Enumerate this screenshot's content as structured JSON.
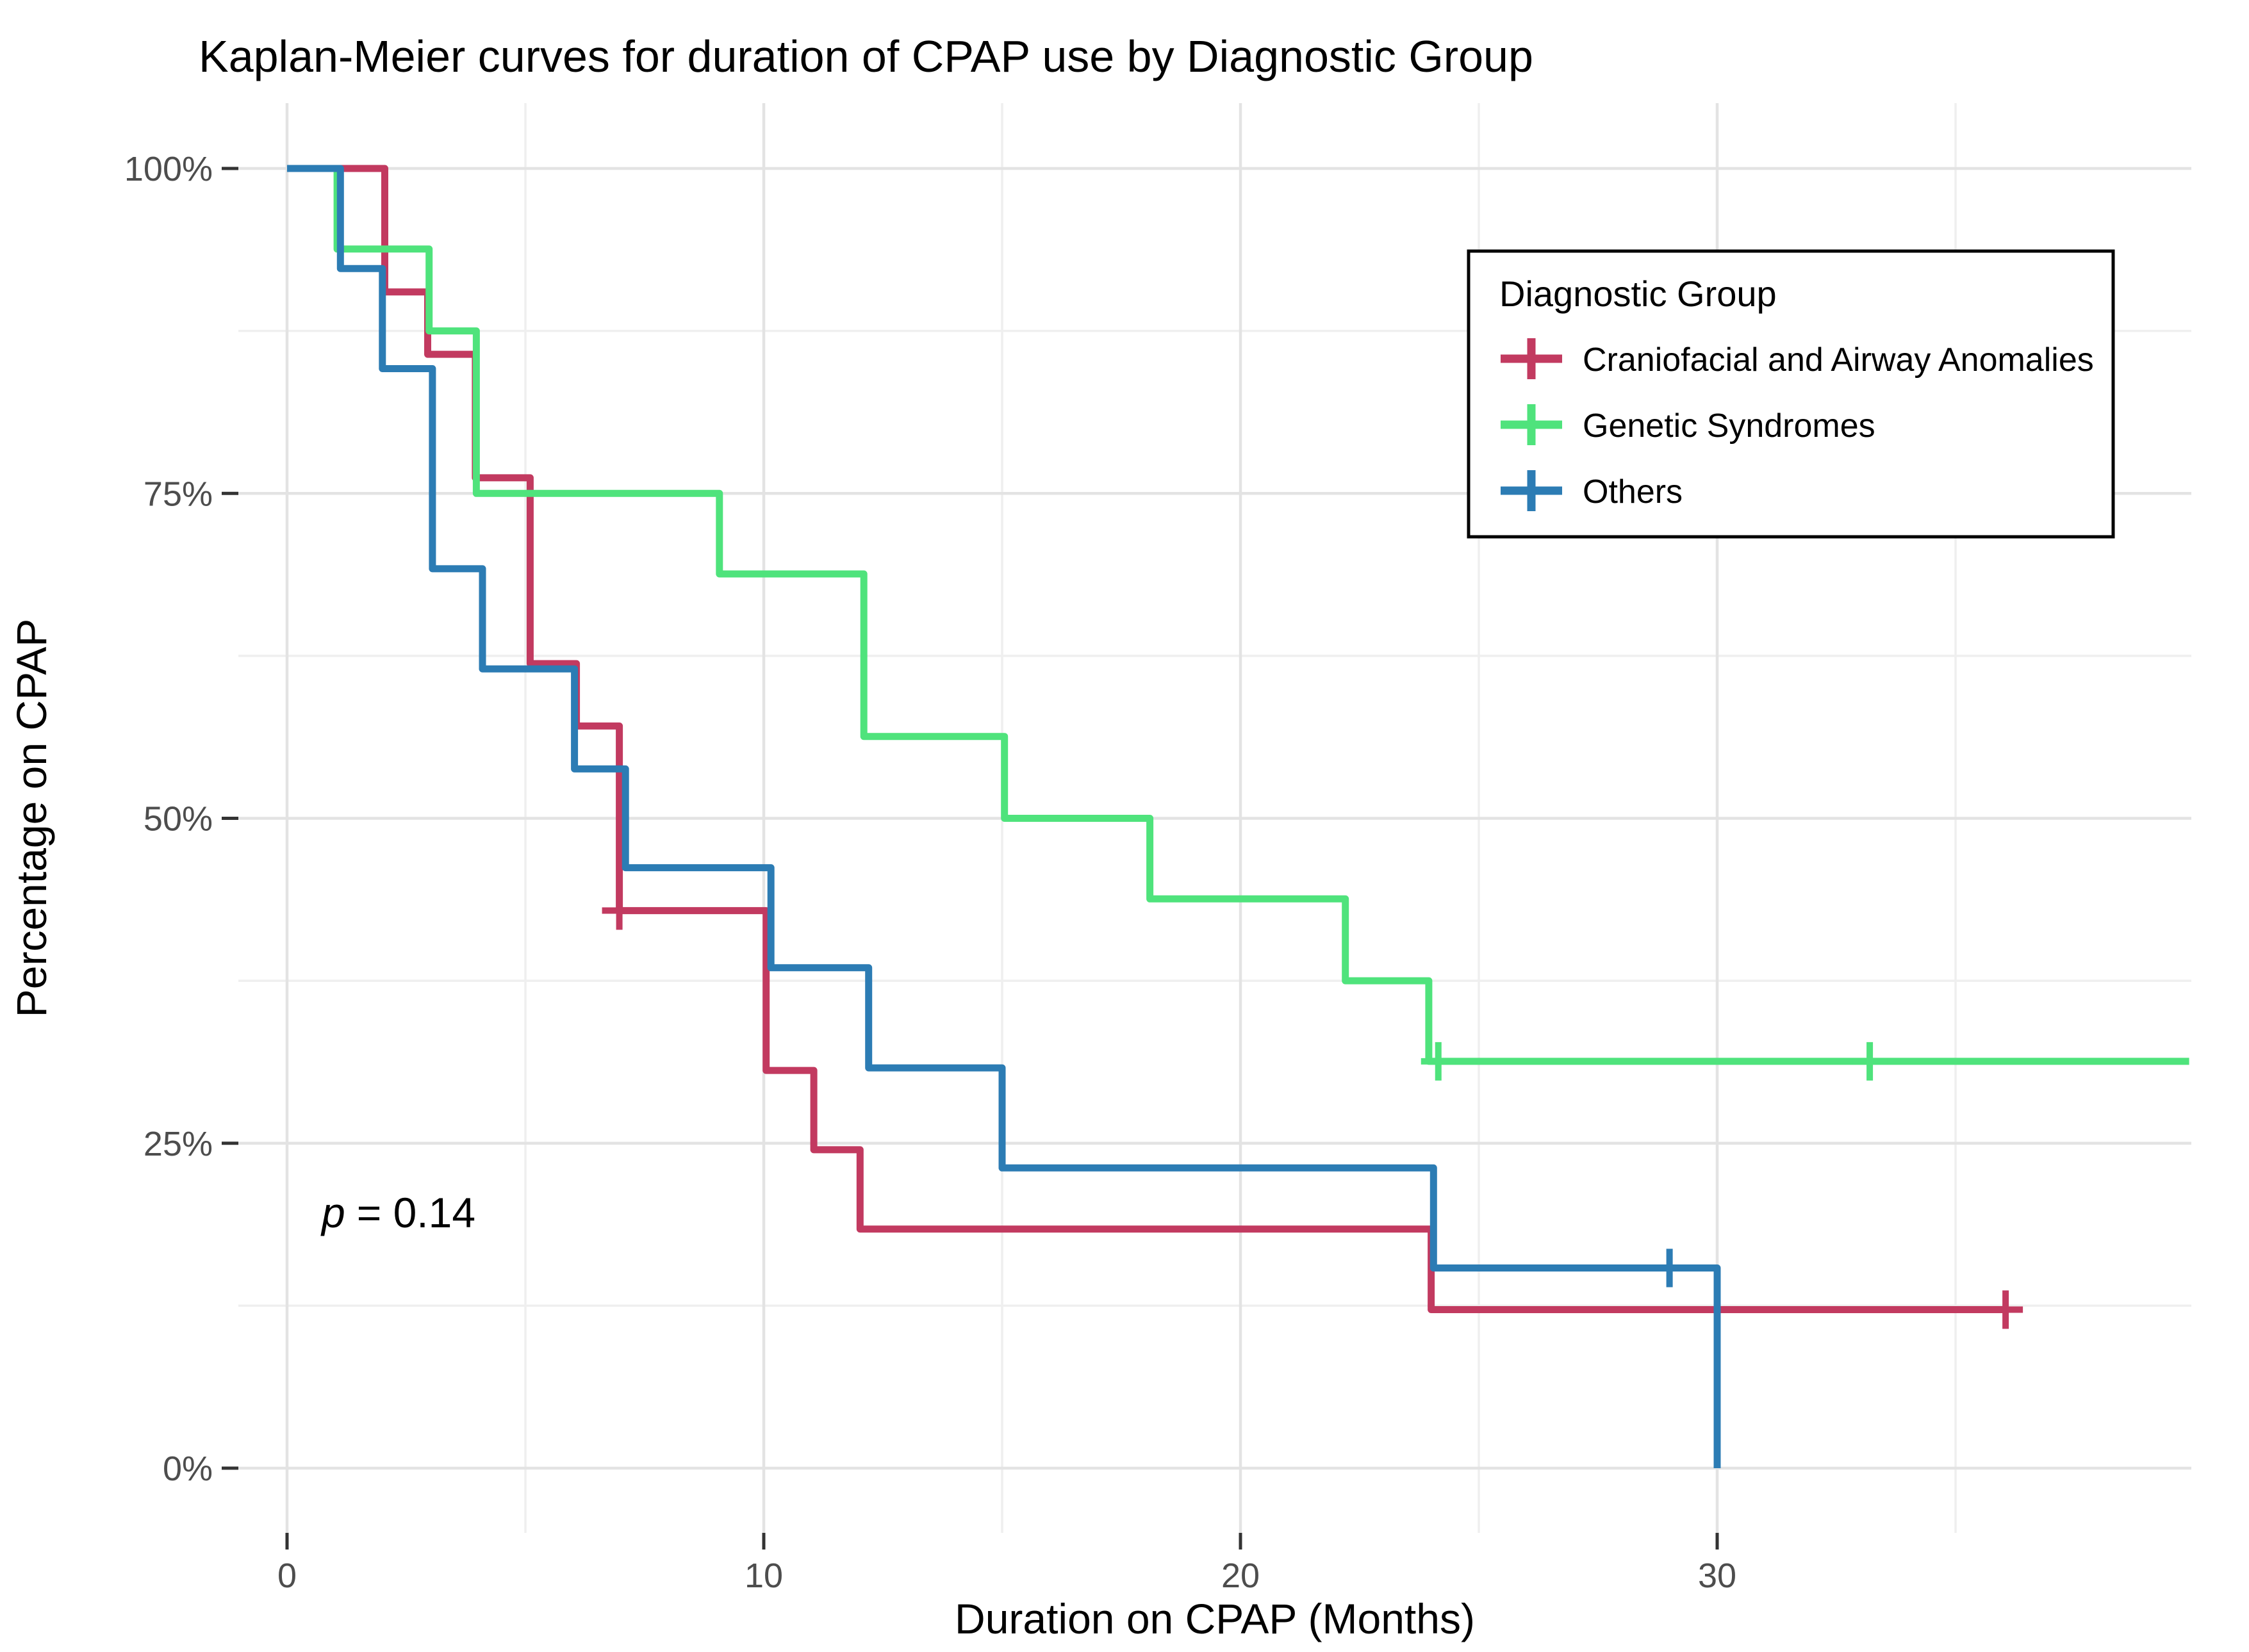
{
  "title": "Kaplan-Meier curves for duration of CPAP use by Diagnostic Group",
  "p_annotation": {
    "symbol": "p",
    "text": "= 0.14"
  },
  "x_axis": {
    "label": "Duration on CPAP (Months)",
    "tick_values": [
      0,
      10,
      20,
      30
    ],
    "tick_labels": [
      "0",
      "10",
      "20",
      "30"
    ],
    "minor_ticks": [
      5,
      15,
      25,
      35
    ]
  },
  "y_axis": {
    "label": "Percentage on CPAP",
    "tick_values": [
      100,
      75,
      50,
      25,
      0
    ],
    "tick_labels": [
      "100%",
      "75%",
      "50%",
      "25%",
      "0%"
    ],
    "minor_ticks": [
      87.5,
      62.5,
      37.5,
      12.5
    ]
  },
  "legend": {
    "title": "Diagnostic Group",
    "entries": [
      {
        "label": "Craniofacial and Airway Anomalies",
        "color": "#c23a60"
      },
      {
        "label": "Genetic Syndromes",
        "color": "#4fe37c"
      },
      {
        "label": "Others",
        "color": "#2c7cb4"
      }
    ]
  },
  "colors": {
    "grid_major": "#e3e3e3",
    "grid_minor": "#efefef",
    "tick_mark": "#333333",
    "red": "#c23a60",
    "green": "#4fe37c",
    "blue": "#2c7cb4"
  },
  "chart_data": {
    "type": "line",
    "subtype": "kaplan-meier-step",
    "title": "Kaplan-Meier curves for duration of CPAP use by Diagnostic Group",
    "xlabel": "Duration on CPAP (Months)",
    "ylabel": "Percentage on CPAP",
    "xlim": [
      0,
      40
    ],
    "ylim": [
      0,
      100
    ],
    "grid": true,
    "legend_position": "inside-top-right",
    "p_value_text": "p = 0.14",
    "series": [
      {
        "name": "Craniofacial and Airway Anomalies",
        "color": "#c23a60",
        "steps": [
          [
            0,
            100
          ],
          [
            2.05,
            100
          ],
          [
            2.05,
            90.5
          ],
          [
            2.95,
            90.5
          ],
          [
            2.95,
            85.7
          ],
          [
            3.95,
            85.7
          ],
          [
            3.95,
            76.2
          ],
          [
            5.1,
            76.2
          ],
          [
            5.1,
            61.9
          ],
          [
            6.07,
            61.9
          ],
          [
            6.07,
            57.1
          ],
          [
            6.97,
            57.1
          ],
          [
            6.97,
            42.9
          ],
          [
            10.05,
            42.9
          ],
          [
            10.05,
            30.6
          ],
          [
            11.05,
            30.6
          ],
          [
            11.05,
            24.5
          ],
          [
            12.02,
            24.5
          ],
          [
            12.02,
            18.4
          ],
          [
            24,
            18.4
          ],
          [
            24,
            12.2
          ],
          [
            36.1,
            12.2
          ]
        ],
        "censor_marks": [
          [
            6.97,
            42.9
          ],
          [
            36.05,
            12.2
          ]
        ]
      },
      {
        "name": "Genetic Syndromes",
        "color": "#4fe37c",
        "steps": [
          [
            0,
            100
          ],
          [
            1.05,
            100
          ],
          [
            1.05,
            93.8
          ],
          [
            2.98,
            93.8
          ],
          [
            2.98,
            87.5
          ],
          [
            3.97,
            87.5
          ],
          [
            3.97,
            75
          ],
          [
            9.07,
            75
          ],
          [
            9.07,
            68.8
          ],
          [
            12.1,
            68.8
          ],
          [
            12.1,
            56.3
          ],
          [
            15.05,
            56.3
          ],
          [
            15.05,
            50
          ],
          [
            18.1,
            50
          ],
          [
            18.1,
            43.8
          ],
          [
            22.2,
            43.8
          ],
          [
            22.2,
            37.5
          ],
          [
            23.95,
            37.5
          ],
          [
            23.95,
            31.3
          ],
          [
            39.9,
            31.3
          ]
        ],
        "censor_marks": [
          [
            24.15,
            31.3
          ],
          [
            33.2,
            31.3
          ]
        ]
      },
      {
        "name": "Others",
        "color": "#2c7cb4",
        "steps": [
          [
            0,
            100
          ],
          [
            1.12,
            100
          ],
          [
            1.12,
            92.3
          ],
          [
            2,
            92.3
          ],
          [
            2,
            84.6
          ],
          [
            3.05,
            84.6
          ],
          [
            3.05,
            69.2
          ],
          [
            4.1,
            69.2
          ],
          [
            4.1,
            61.5
          ],
          [
            6.03,
            61.5
          ],
          [
            6.03,
            53.8
          ],
          [
            7.1,
            53.8
          ],
          [
            7.1,
            46.2
          ],
          [
            10.15,
            46.2
          ],
          [
            10.15,
            38.5
          ],
          [
            12.2,
            38.5
          ],
          [
            12.2,
            30.8
          ],
          [
            15,
            30.8
          ],
          [
            15,
            23.1
          ],
          [
            24.05,
            23.1
          ],
          [
            24.05,
            15.4
          ],
          [
            30,
            15.4
          ],
          [
            30,
            0
          ]
        ],
        "censor_marks": [
          [
            29,
            15.4
          ]
        ]
      }
    ]
  }
}
